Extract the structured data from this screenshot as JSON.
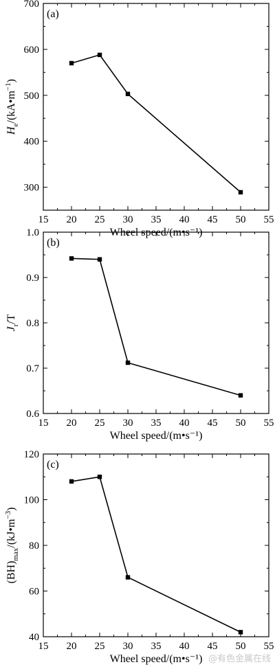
{
  "chart_data": [
    {
      "type": "line",
      "panel_label": "(a)",
      "x": [
        20,
        25,
        30,
        50
      ],
      "series": [
        {
          "values": [
            570,
            588,
            503,
            289
          ]
        }
      ],
      "xlabel": "Wheel speed/(m•s⁻¹)",
      "ylabel": "H_e/(kA•m⁻¹)",
      "ylabel_parts": {
        "sym": "H",
        "sub": "e",
        "unit": "/(kA•m",
        "sup": "−1",
        "close": ")"
      },
      "xlim": [
        15,
        55
      ],
      "ylim": [
        250,
        700
      ],
      "xticks": [
        "15",
        "20",
        "25",
        "30",
        "35",
        "40",
        "45",
        "50",
        "55"
      ],
      "yticks": [
        "300",
        "400",
        "500",
        "600",
        "700"
      ],
      "ytick_values": [
        300,
        400,
        500,
        600,
        700
      ]
    },
    {
      "type": "line",
      "panel_label": "(b)",
      "x": [
        20,
        25,
        30,
        50
      ],
      "series": [
        {
          "values": [
            0.942,
            0.94,
            0.712,
            0.64
          ]
        }
      ],
      "xlabel": "Wheel speed/(m•s⁻¹)",
      "ylabel": "J_r/T",
      "ylabel_parts": {
        "sym": "J",
        "sub": "r",
        "unit": "/T",
        "sup": "",
        "close": ""
      },
      "xlim": [
        15,
        55
      ],
      "ylim": [
        0.6,
        1.0
      ],
      "xticks": [
        "15",
        "20",
        "25",
        "30",
        "35",
        "40",
        "45",
        "50",
        "55"
      ],
      "yticks": [
        "0.6",
        "0.7",
        "0.8",
        "0.9",
        "1.0"
      ],
      "ytick_values": [
        0.6,
        0.7,
        0.8,
        0.9,
        1.0
      ]
    },
    {
      "type": "line",
      "panel_label": "(c)",
      "x": [
        20,
        25,
        30,
        50
      ],
      "series": [
        {
          "values": [
            108,
            110,
            66,
            42
          ]
        }
      ],
      "xlabel": "Wheel speed/(m•s⁻¹)",
      "ylabel": "(BH)_max/(kJ•m⁻³)",
      "ylabel_parts": {
        "sym": "(BH)",
        "sub": "max",
        "unit": "/(kJ•m",
        "sup": "−3",
        "close": ")"
      },
      "xlim": [
        15,
        55
      ],
      "ylim": [
        40,
        120
      ],
      "xticks": [
        "15",
        "20",
        "25",
        "30",
        "35",
        "40",
        "45",
        "50",
        "55"
      ],
      "yticks": [
        "40",
        "60",
        "80",
        "100",
        "120"
      ],
      "ytick_values": [
        40,
        60,
        80,
        100,
        120
      ]
    }
  ],
  "watermark": "@有色金属在线",
  "colors": {
    "line": "#000000",
    "marker": "#000000",
    "axis": "#000000"
  }
}
